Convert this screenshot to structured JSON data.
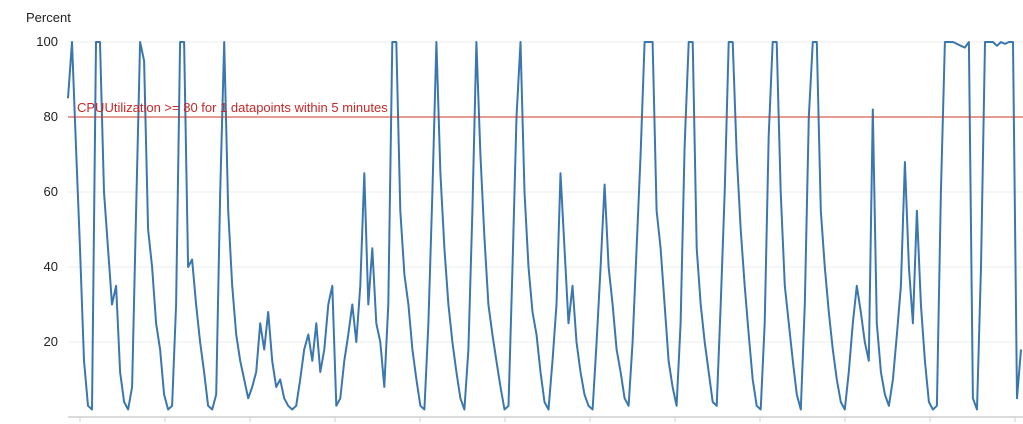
{
  "chart_data": {
    "type": "line",
    "title": "",
    "ylabel": "Percent",
    "xlabel": "",
    "ylim": [
      0,
      100
    ],
    "yticks": [
      20,
      40,
      60,
      80,
      100
    ],
    "grid": true,
    "series_color": "#3b77ae",
    "threshold": {
      "value": 80,
      "label": "CPUUtilization >= 80 for 1 datapoints within 5 minutes",
      "color": "#c0392b"
    },
    "series": [
      {
        "values": [
          85,
          100,
          72,
          45,
          15,
          3,
          2,
          100,
          100,
          60,
          45,
          30,
          35,
          12,
          4,
          2,
          8,
          55,
          100,
          95,
          50,
          40,
          25,
          18,
          6,
          2,
          3,
          30,
          100,
          100,
          40,
          42,
          30,
          20,
          12,
          3,
          2,
          6,
          60,
          100,
          55,
          35,
          22,
          15,
          10,
          5,
          8,
          12,
          25,
          18,
          28,
          15,
          8,
          10,
          5,
          3,
          2,
          3,
          10,
          18,
          22,
          15,
          25,
          12,
          18,
          30,
          35,
          3,
          5,
          15,
          22,
          30,
          20,
          35,
          65,
          30,
          45,
          25,
          20,
          8,
          30,
          100,
          100,
          55,
          38,
          30,
          18,
          10,
          3,
          2,
          25,
          60,
          100,
          65,
          45,
          30,
          20,
          12,
          5,
          2,
          18,
          55,
          100,
          70,
          48,
          30,
          22,
          15,
          8,
          2,
          3,
          40,
          80,
          100,
          60,
          40,
          28,
          22,
          12,
          4,
          2,
          15,
          30,
          65,
          45,
          25,
          35,
          20,
          12,
          6,
          3,
          2,
          20,
          40,
          62,
          40,
          30,
          18,
          12,
          5,
          3,
          20,
          45,
          70,
          100,
          100,
          100,
          55,
          45,
          30,
          15,
          8,
          3,
          25,
          72,
          100,
          100,
          45,
          30,
          20,
          12,
          4,
          3,
          30,
          60,
          100,
          100,
          70,
          50,
          35,
          22,
          10,
          3,
          2,
          25,
          75,
          100,
          100,
          60,
          35,
          25,
          15,
          6,
          2,
          30,
          80,
          100,
          100,
          55,
          40,
          28,
          18,
          10,
          4,
          2,
          12,
          25,
          35,
          28,
          20,
          15,
          82,
          25,
          12,
          6,
          3,
          10,
          22,
          35,
          68,
          40,
          25,
          55,
          30,
          15,
          4,
          2,
          3,
          60,
          100,
          100,
          100,
          99.5,
          99,
          98.5,
          100,
          5,
          2,
          40,
          100,
          100,
          100,
          99,
          100,
          99.5,
          100,
          100,
          5,
          18
        ]
      }
    ]
  }
}
